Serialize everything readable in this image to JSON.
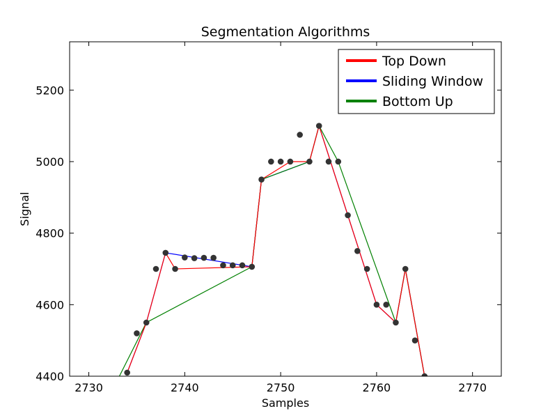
{
  "chart_data": {
    "type": "line",
    "title": "Segmentation Algorithms",
    "xlabel": "Samples",
    "ylabel": "Signal",
    "xlim": [
      2728,
      2773
    ],
    "ylim": [
      4400,
      5335
    ],
    "xticks": [
      2730,
      2740,
      2750,
      2760,
      2770
    ],
    "yticks": [
      4400,
      4600,
      4800,
      5000,
      5200
    ],
    "grid": false,
    "legend_position": "top-right",
    "points": {
      "name": "samples",
      "color": "#333333",
      "x": [
        2734,
        2735,
        2736,
        2737,
        2738,
        2739,
        2740,
        2741,
        2742,
        2743,
        2744,
        2745,
        2746,
        2747,
        2748,
        2749,
        2750,
        2751,
        2752,
        2753,
        2754,
        2755,
        2756,
        2757,
        2758,
        2759,
        2760,
        2761,
        2762,
        2763,
        2764,
        2765
      ],
      "y": [
        4410,
        4520,
        4550,
        4700,
        4745,
        4700,
        4732,
        4730,
        4731,
        4731,
        4710,
        4710,
        4710,
        4706,
        4950,
        5000,
        5000,
        5000,
        5075,
        5000,
        5100,
        5000,
        5000,
        4850,
        4750,
        4700,
        4600,
        4600,
        4550,
        4700,
        4500,
        4400
      ]
    },
    "series": [
      {
        "name": "Sliding Window",
        "color": "#0000ff",
        "x": [
          2734,
          2736,
          2738,
          2747,
          2748,
          2753,
          2754,
          2760,
          2762,
          2763,
          2765
        ],
        "y": [
          4410,
          4550,
          4745,
          4706,
          4950,
          5000,
          5100,
          4600,
          4550,
          4700,
          4400
        ]
      },
      {
        "name": "Bottom Up",
        "color": "#008000",
        "x": [
          2733,
          2736,
          2747,
          2748,
          2753,
          2754,
          2756,
          2762,
          2763,
          2765
        ],
        "y": [
          4390,
          4550,
          4706,
          4950,
          5000,
          5100,
          5000,
          4550,
          4700,
          4400
        ]
      },
      {
        "name": "Top Down",
        "color": "#ff0000",
        "x": [
          2734,
          2736,
          2738,
          2739,
          2747,
          2748,
          2751,
          2753,
          2754,
          2760,
          2762,
          2763,
          2765
        ],
        "y": [
          4410,
          4550,
          4745,
          4700,
          4706,
          4950,
          5000,
          5000,
          5100,
          4600,
          4550,
          4700,
          4400
        ]
      }
    ],
    "legend": [
      {
        "label": "Top Down",
        "color": "#ff0000"
      },
      {
        "label": "Sliding Window",
        "color": "#0000ff"
      },
      {
        "label": "Bottom Up",
        "color": "#008000"
      }
    ]
  }
}
